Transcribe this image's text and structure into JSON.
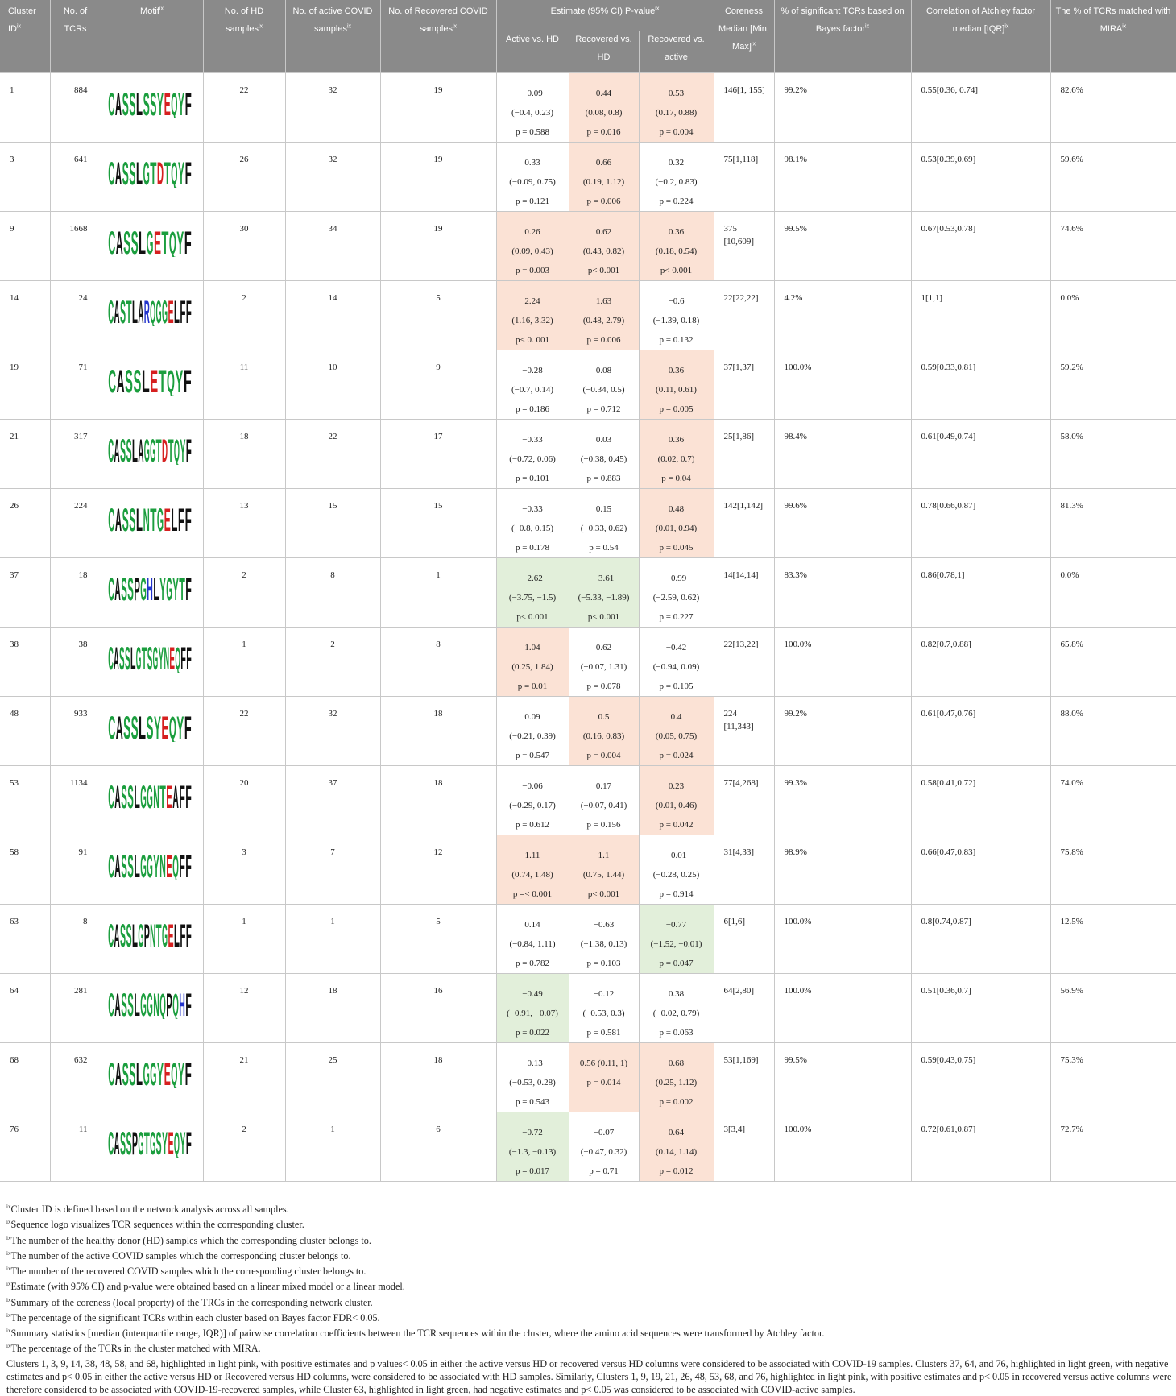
{
  "header": {
    "cluster_id": "Cluster ID",
    "no_tcrs": "No. of TCRs",
    "motif": "Motif",
    "no_hd": "No. of HD samples",
    "no_active": "No. of active COVID samples",
    "no_recovered": "No. of Recovered COVID samples",
    "estimate": "Estimate (95% CI) P-value",
    "sub_active_hd": "Active vs. HD",
    "sub_recovered_hd": "Recovered vs. HD",
    "sub_recovered_active": "Recovered vs. active",
    "coreness": "Coreness Median [Min, Max]",
    "pct_significant": "% of significant TCRs based on Bayes factor",
    "correlation": "Correlation of Atchley factor median [IQR]",
    "pct_mira": "The % of TCRs matched with MIRA",
    "footnote_mark": "ix"
  },
  "rows": [
    {
      "id": "1",
      "tcrs": "884",
      "motif": "CASSLSSYEQYF",
      "hd": "22",
      "active": "32",
      "recovered": "19",
      "e1": {
        "est": "−0.09",
        "ci": "(−0.4, 0.23)",
        "p": "p = 0.588",
        "hl": ""
      },
      "e2": {
        "est": "0.44",
        "ci": "(0.08, 0.8)",
        "p": "p = 0.016",
        "hl": "pink"
      },
      "e3": {
        "est": "0.53",
        "ci": "(0.17, 0.88)",
        "p": "p = 0.004",
        "hl": "pink"
      },
      "core": "146[1, 155]",
      "sig": "99.2%",
      "corr": "0.55[0.36, 0.74]",
      "mira": "82.6%"
    },
    {
      "id": "3",
      "tcrs": "641",
      "motif": "CASSLGTDTQYF",
      "hd": "26",
      "active": "32",
      "recovered": "19",
      "e1": {
        "est": "0.33",
        "ci": "(−0.09, 0.75)",
        "p": "p = 0.121",
        "hl": ""
      },
      "e2": {
        "est": "0.66",
        "ci": "(0.19, 1.12)",
        "p": "p = 0.006",
        "hl": "pink"
      },
      "e3": {
        "est": "0.32",
        "ci": "(−0.2, 0.83)",
        "p": "p = 0.224",
        "hl": ""
      },
      "core": "75[1,118]",
      "sig": "98.1%",
      "corr": "0.53[0.39,0.69]",
      "mira": "59.6%"
    },
    {
      "id": "9",
      "tcrs": "1668",
      "motif": "CASSLGETQYF",
      "hd": "30",
      "active": "34",
      "recovered": "19",
      "e1": {
        "est": "0.26",
        "ci": "(0.09, 0.43)",
        "p": "p = 0.003",
        "hl": "pink"
      },
      "e2": {
        "est": "0.62",
        "ci": "(0.43, 0.82)",
        "p": "p< 0.001",
        "hl": "pink"
      },
      "e3": {
        "est": "0.36",
        "ci": "(0.18, 0.54)",
        "p": "p< 0.001",
        "hl": "pink"
      },
      "core": "375 [10,609]",
      "sig": "99.5%",
      "corr": "0.67[0.53,0.78]",
      "mira": "74.6%"
    },
    {
      "id": "14",
      "tcrs": "24",
      "motif": "CASTLARQGGELFF",
      "hd": "2",
      "active": "14",
      "recovered": "5",
      "e1": {
        "est": "2.24",
        "ci": "(1.16, 3.32)",
        "p": "p< 0. 001",
        "hl": "pink"
      },
      "e2": {
        "est": "1.63",
        "ci": "(0.48, 2.79)",
        "p": "p = 0.006",
        "hl": "pink"
      },
      "e3": {
        "est": "−0.6",
        "ci": "(−1.39, 0.18)",
        "p": "p = 0.132",
        "hl": ""
      },
      "core": "22[22,22]",
      "sig": "4.2%",
      "corr": "1[1,1]",
      "mira": "0.0%"
    },
    {
      "id": "19",
      "tcrs": "71",
      "motif": "CASSLETQYF",
      "hd": "11",
      "active": "10",
      "recovered": "9",
      "e1": {
        "est": "−0.28",
        "ci": "(−0.7, 0.14)",
        "p": "p = 0.186",
        "hl": ""
      },
      "e2": {
        "est": "0.08",
        "ci": "(−0.34, 0.5)",
        "p": "p = 0.712",
        "hl": ""
      },
      "e3": {
        "est": "0.36",
        "ci": "(0.11, 0.61)",
        "p": "p = 0.005",
        "hl": "pink"
      },
      "core": "37[1,37]",
      "sig": "100.0%",
      "corr": "0.59[0.33,0.81]",
      "mira": "59.2%"
    },
    {
      "id": "21",
      "tcrs": "317",
      "motif": "CASSLAGGTDTQYF",
      "hd": "18",
      "active": "22",
      "recovered": "17",
      "e1": {
        "est": "−0.33",
        "ci": "(−0.72, 0.06)",
        "p": "p = 0.101",
        "hl": ""
      },
      "e2": {
        "est": "0.03",
        "ci": "(−0.38, 0.45)",
        "p": "p = 0.883",
        "hl": ""
      },
      "e3": {
        "est": "0.36",
        "ci": "(0.02, 0.7)",
        "p": "p = 0.04",
        "hl": "pink"
      },
      "core": "25[1,86]",
      "sig": "98.4%",
      "corr": "0.61[0.49,0.74]",
      "mira": "58.0%"
    },
    {
      "id": "26",
      "tcrs": "224",
      "motif": "CASSLNTGELFF",
      "hd": "13",
      "active": "15",
      "recovered": "15",
      "e1": {
        "est": "−0.33",
        "ci": "(−0.8, 0.15)",
        "p": "p = 0.178",
        "hl": ""
      },
      "e2": {
        "est": "0.15",
        "ci": "(−0.33, 0.62)",
        "p": "p = 0.54",
        "hl": ""
      },
      "e3": {
        "est": "0.48",
        "ci": "(0.01, 0.94)",
        "p": "p = 0.045",
        "hl": "pink"
      },
      "core": "142[1,142]",
      "sig": "99.6%",
      "corr": "0.78[0.66,0.87]",
      "mira": "81.3%"
    },
    {
      "id": "37",
      "tcrs": "18",
      "motif": "CASSPGHLYGYTF",
      "hd": "2",
      "active": "8",
      "recovered": "1",
      "e1": {
        "est": "−2.62",
        "ci": "(−3.75, −1.5)",
        "p": "p< 0.001",
        "hl": "green"
      },
      "e2": {
        "est": "−3.61",
        "ci": "(−5.33, −1.89)",
        "p": "p< 0.001",
        "hl": "green"
      },
      "e3": {
        "est": "−0.99",
        "ci": "(−2.59, 0.62)",
        "p": "p = 0.227",
        "hl": ""
      },
      "core": "14[14,14]",
      "sig": "83.3%",
      "corr": "0.86[0.78,1]",
      "mira": "0.0%"
    },
    {
      "id": "38",
      "tcrs": "38",
      "motif": "CASSLGTSGYNEQFF",
      "hd": "1",
      "active": "2",
      "recovered": "8",
      "e1": {
        "est": "1.04",
        "ci": "(0.25, 1.84)",
        "p": "p = 0.01",
        "hl": "pink"
      },
      "e2": {
        "est": "0.62",
        "ci": "(−0.07, 1.31)",
        "p": "p = 0.078",
        "hl": ""
      },
      "e3": {
        "est": "−0.42",
        "ci": "(−0.94, 0.09)",
        "p": "p = 0.105",
        "hl": ""
      },
      "core": "22[13,22]",
      "sig": "100.0%",
      "corr": "0.82[0.7,0.88]",
      "mira": "65.8%"
    },
    {
      "id": "48",
      "tcrs": "933",
      "motif": "CASSLSYEQYF",
      "hd": "22",
      "active": "32",
      "recovered": "18",
      "e1": {
        "est": "0.09",
        "ci": "(−0.21, 0.39)",
        "p": "p = 0.547",
        "hl": ""
      },
      "e2": {
        "est": "0.5",
        "ci": "(0.16, 0.83)",
        "p": "p = 0.004",
        "hl": "pink"
      },
      "e3": {
        "est": "0.4",
        "ci": "(0.05, 0.75)",
        "p": "p = 0.024",
        "hl": "pink"
      },
      "core": "224 [11,343]",
      "sig": "99.2%",
      "corr": "0.61[0.47,0.76]",
      "mira": "88.0%"
    },
    {
      "id": "53",
      "tcrs": "1134",
      "motif": "CASSLGGNTEAFF",
      "hd": "20",
      "active": "37",
      "recovered": "18",
      "e1": {
        "est": "−0.06",
        "ci": "(−0.29, 0.17)",
        "p": "p = 0.612",
        "hl": ""
      },
      "e2": {
        "est": "0.17",
        "ci": "(−0.07, 0.41)",
        "p": "p = 0.156",
        "hl": ""
      },
      "e3": {
        "est": "0.23",
        "ci": "(0.01, 0.46)",
        "p": "p = 0.042",
        "hl": "pink"
      },
      "core": "77[4,268]",
      "sig": "99.3%",
      "corr": "0.58[0.41,0.72]",
      "mira": "74.0%"
    },
    {
      "id": "58",
      "tcrs": "91",
      "motif": "CASSLGGYNEQFF",
      "hd": "3",
      "active": "7",
      "recovered": "12",
      "e1": {
        "est": "1.11",
        "ci": "(0.74, 1.48)",
        "p": "p =< 0.001",
        "hl": "pink"
      },
      "e2": {
        "est": "1.1",
        "ci": "(0.75, 1.44)",
        "p": "p< 0.001",
        "hl": "pink"
      },
      "e3": {
        "est": "−0.01",
        "ci": "(−0.28, 0.25)",
        "p": "p = 0.914",
        "hl": ""
      },
      "core": "31[4,33]",
      "sig": "98.9%",
      "corr": "0.66[0.47,0.83]",
      "mira": "75.8%"
    },
    {
      "id": "63",
      "tcrs": "8",
      "motif": "CASSLGPNTGELFF",
      "hd": "1",
      "active": "1",
      "recovered": "5",
      "e1": {
        "est": "0.14",
        "ci": "(−0.84, 1.11)",
        "p": "p = 0.782",
        "hl": ""
      },
      "e2": {
        "est": "−0.63",
        "ci": "(−1.38, 0.13)",
        "p": "p = 0.103",
        "hl": ""
      },
      "e3": {
        "est": "−0.77",
        "ci": "(−1.52, −0.01)",
        "p": "p = 0.047",
        "hl": "green"
      },
      "core": "6[1,6]",
      "sig": "100.0%",
      "corr": "0.8[0.74,0.87]",
      "mira": "12.5%"
    },
    {
      "id": "64",
      "tcrs": "281",
      "motif": "CASSLGGNQPQHF",
      "hd": "12",
      "active": "18",
      "recovered": "16",
      "e1": {
        "est": "−0.49",
        "ci": "(−0.91, −0.07)",
        "p": "p = 0.022",
        "hl": "green"
      },
      "e2": {
        "est": "−0.12",
        "ci": "(−0.53, 0.3)",
        "p": "p = 0.581",
        "hl": ""
      },
      "e3": {
        "est": "0.38",
        "ci": "(−0.02, 0.79)",
        "p": "p = 0.063",
        "hl": ""
      },
      "core": "64[2,80]",
      "sig": "100.0%",
      "corr": "0.51[0.36,0.7]",
      "mira": "56.9%"
    },
    {
      "id": "68",
      "tcrs": "632",
      "motif": "CASSLGGYEQYF",
      "hd": "21",
      "active": "25",
      "recovered": "18",
      "e1": {
        "est": "−0.13",
        "ci": "(−0.53, 0.28)",
        "p": "p = 0.543",
        "hl": ""
      },
      "e2": {
        "est": "0.56 (0.11, 1)",
        "ci": "p = 0.014",
        "p": "",
        "hl": "pink"
      },
      "e3": {
        "est": "0.68",
        "ci": "(0.25, 1.12)",
        "p": "p = 0.002",
        "hl": "pink"
      },
      "core": "53[1,169]",
      "sig": "99.5%",
      "corr": "0.59[0.43,0.75]",
      "mira": "75.3%"
    },
    {
      "id": "76",
      "tcrs": "11",
      "motif": "CASSPGTGSYEQYF",
      "hd": "2",
      "active": "1",
      "recovered": "6",
      "e1": {
        "est": "−0.72",
        "ci": "(−1.3, −0.13)",
        "p": "p = 0.017",
        "hl": "green"
      },
      "e2": {
        "est": "−0.07",
        "ci": "(−0.47, 0.32)",
        "p": "p = 0.71",
        "hl": ""
      },
      "e3": {
        "est": "0.64",
        "ci": "(0.14, 1.14)",
        "p": "p = 0.012",
        "hl": "pink"
      },
      "core": "3[3,4]",
      "sig": "100.0%",
      "corr": "0.72[0.61,0.87]",
      "mira": "72.7%"
    }
  ],
  "footnotes": [
    "Cluster ID is defined based on the network analysis across all samples.",
    "Sequence logo visualizes TCR sequences within the corresponding cluster.",
    "The number of the healthy donor (HD) samples which the corresponding cluster belongs to.",
    "The number of the active COVID samples which the corresponding cluster belongs to.",
    "The number of the recovered COVID samples which the corresponding cluster belongs to.",
    "Estimate (with 95% CI) and p-value were obtained based on a linear mixed model or a linear model.",
    "Summary of the coreness (local property) of the TRCs in the corresponding network cluster.",
    "The percentage of the significant TCRs within each cluster based on Bayes factor FDR< 0.05.",
    "Summary statistics [median (interquartile range, IQR)] of pairwise correlation coefficients between the TCR sequences within the cluster, where the amino acid sequences were transformed by Atchley factor.",
    "The percentage of the TCRs in the cluster matched with MIRA."
  ],
  "summary": "Clusters 1, 3, 9, 14, 38, 48, 58, and 68, highlighted in light pink, with positive estimates and p values< 0.05 in either the active versus HD or recovered versus HD columns were considered to be associated with COVID-19 samples. Clusters 37, 64, and 76, highlighted in light green, with negative estimates and p< 0.05 in either the active versus HD or Recovered versus HD columns, were considered to be associated with HD samples. Similarly, Clusters 1, 9, 19, 21, 26, 48, 53, 68, and 76, highlighted in light pink, with positive estimates and p< 0.05 in recovered versus active columns were therefore considered to be associated with COVID-19-recovered samples, while Cluster 63, highlighted in light green, had negative estimates and p< 0.05 was considered to be associated with COVID-active samples.",
  "colors": {
    "header_bg": "#8a8a8a",
    "pink": "#fbe2d5",
    "green": "#e2efda",
    "aa_hydrophilic": "#1b9e3e",
    "aa_neutral": "#111111",
    "aa_acidic": "#d62020",
    "aa_basic": "#2233cc",
    "aa_amide": "#8a2be2"
  }
}
